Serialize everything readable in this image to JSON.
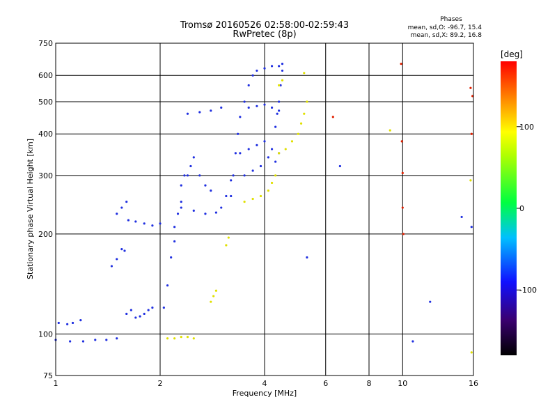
{
  "header": {
    "title_line1": "Tromsø 20160526 02:58:00-02:59:43",
    "title_line2": "RwPretec (8p)",
    "phases_title": "Phases",
    "phases_o": "mean, sd,O: -96.7, 15.4",
    "phases_x": "mean, sd,X:  89.2, 16.8"
  },
  "colorbar": {
    "unit": "[deg]",
    "ticks": [
      "100",
      "0",
      "-100"
    ],
    "tick_values": [
      100,
      0,
      -100
    ],
    "range": [
      -180,
      180
    ]
  },
  "chart_data": {
    "type": "scatter",
    "xlabel": "Frequency [MHz]",
    "ylabel": "Stationary phase Virtual Height [km]",
    "x_scale": "log",
    "y_scale": "log",
    "xlim": [
      1,
      16
    ],
    "ylim": [
      75,
      750
    ],
    "x_ticks": [
      1,
      2,
      4,
      6,
      8,
      10,
      16
    ],
    "x_tick_labels": [
      "1",
      "2",
      "4",
      "6",
      "8",
      "10",
      "16"
    ],
    "y_ticks": [
      75,
      100,
      200,
      300,
      400,
      500,
      600,
      750
    ],
    "y_tick_labels": [
      "75",
      "100",
      "200",
      "300",
      "400",
      "500",
      "600",
      "750"
    ],
    "grid": true,
    "series": [
      {
        "phase_color": "blue",
        "points": [
          [
            1.0,
            96
          ],
          [
            1.1,
            95
          ],
          [
            1.2,
            95
          ],
          [
            1.3,
            96
          ],
          [
            1.4,
            96
          ],
          [
            1.5,
            97
          ],
          [
            1.02,
            108
          ],
          [
            1.08,
            107
          ],
          [
            1.12,
            108
          ],
          [
            1.18,
            110
          ]
        ]
      },
      {
        "phase_color": "blue",
        "points": [
          [
            1.45,
            160
          ],
          [
            1.5,
            168
          ],
          [
            1.55,
            180
          ],
          [
            1.58,
            178
          ],
          [
            1.6,
            115
          ],
          [
            1.65,
            118
          ],
          [
            1.7,
            112
          ],
          [
            1.75,
            113
          ],
          [
            1.8,
            115
          ],
          [
            1.85,
            118
          ],
          [
            1.9,
            120
          ]
        ]
      },
      {
        "phase_color": "blue",
        "points": [
          [
            1.5,
            230
          ],
          [
            1.55,
            240
          ],
          [
            1.6,
            250
          ],
          [
            1.62,
            220
          ],
          [
            1.7,
            218
          ],
          [
            1.8,
            215
          ],
          [
            1.9,
            212
          ],
          [
            2.0,
            215
          ]
        ]
      },
      {
        "phase_color": "blue",
        "points": [
          [
            2.05,
            120
          ],
          [
            2.1,
            140
          ],
          [
            2.15,
            170
          ],
          [
            2.2,
            190
          ],
          [
            2.2,
            210
          ],
          [
            2.25,
            230
          ],
          [
            2.3,
            250
          ],
          [
            2.3,
            280
          ],
          [
            2.35,
            300
          ]
        ]
      },
      {
        "phase_color": "blue",
        "points": [
          [
            2.3,
            240
          ],
          [
            2.5,
            235
          ],
          [
            2.7,
            230
          ],
          [
            2.9,
            232
          ],
          [
            3.0,
            240
          ],
          [
            3.1,
            260
          ],
          [
            3.2,
            290
          ]
        ]
      },
      {
        "phase_color": "blue",
        "points": [
          [
            2.4,
            300
          ],
          [
            2.45,
            320
          ],
          [
            2.5,
            340
          ],
          [
            2.6,
            300
          ],
          [
            2.7,
            280
          ],
          [
            2.8,
            270
          ]
        ]
      },
      {
        "phase_color": "blue",
        "points": [
          [
            2.4,
            460
          ],
          [
            2.6,
            465
          ],
          [
            2.8,
            470
          ],
          [
            3.0,
            480
          ]
        ]
      },
      {
        "phase_color": "blue",
        "points": [
          [
            3.2,
            260
          ],
          [
            3.25,
            300
          ],
          [
            3.3,
            350
          ],
          [
            3.35,
            400
          ],
          [
            3.4,
            450
          ],
          [
            3.5,
            500
          ],
          [
            3.6,
            560
          ],
          [
            3.7,
            600
          ],
          [
            3.8,
            620
          ],
          [
            4.0,
            630
          ],
          [
            4.2,
            640
          ],
          [
            4.4,
            640
          ]
        ]
      },
      {
        "phase_color": "blue",
        "points": [
          [
            3.4,
            350
          ],
          [
            3.6,
            360
          ],
          [
            3.8,
            370
          ],
          [
            4.0,
            380
          ],
          [
            4.2,
            360
          ],
          [
            4.4,
            350
          ]
        ]
      },
      {
        "phase_color": "blue",
        "points": [
          [
            3.5,
            300
          ],
          [
            3.7,
            310
          ],
          [
            3.9,
            320
          ],
          [
            4.1,
            340
          ],
          [
            4.3,
            330
          ]
        ]
      },
      {
        "phase_color": "blue",
        "points": [
          [
            3.6,
            480
          ],
          [
            3.8,
            485
          ],
          [
            4.0,
            490
          ],
          [
            4.2,
            480
          ],
          [
            4.4,
            470
          ]
        ]
      },
      {
        "phase_color": "blue",
        "points": [
          [
            4.3,
            420
          ],
          [
            4.35,
            460
          ],
          [
            4.4,
            500
          ],
          [
            4.45,
            560
          ],
          [
            4.5,
            620
          ],
          [
            4.5,
            650
          ]
        ]
      },
      {
        "phase_color": "yellow",
        "points": [
          [
            3.5,
            250
          ],
          [
            3.7,
            255
          ],
          [
            3.9,
            260
          ],
          [
            4.1,
            270
          ],
          [
            4.2,
            285
          ],
          [
            4.3,
            300
          ]
        ]
      },
      {
        "phase_color": "yellow",
        "points": [
          [
            4.4,
            350
          ],
          [
            4.6,
            360
          ],
          [
            4.8,
            380
          ],
          [
            5.0,
            400
          ],
          [
            5.1,
            430
          ],
          [
            5.2,
            460
          ],
          [
            5.3,
            500
          ]
        ]
      },
      {
        "phase_color": "yellow",
        "points": [
          [
            2.1,
            97
          ],
          [
            2.2,
            97
          ],
          [
            2.3,
            98
          ],
          [
            2.4,
            98
          ],
          [
            2.5,
            97
          ]
        ]
      },
      {
        "phase_color": "yellow",
        "points": [
          [
            2.8,
            125
          ],
          [
            2.85,
            130
          ],
          [
            2.9,
            135
          ],
          [
            3.1,
            185
          ],
          [
            3.15,
            195
          ]
        ]
      },
      {
        "phase_color": "yellow",
        "points": [
          [
            4.4,
            560
          ],
          [
            4.5,
            580
          ],
          [
            5.2,
            610
          ]
        ]
      },
      {
        "phase_color": "red",
        "points": [
          [
            6.3,
            450
          ],
          [
            9.9,
            650
          ],
          [
            9.95,
            380
          ],
          [
            10.0,
            305
          ],
          [
            10.0,
            240
          ],
          [
            10.05,
            200
          ],
          [
            15.7,
            550
          ],
          [
            15.8,
            400
          ],
          [
            15.9,
            520
          ]
        ]
      },
      {
        "phase_color": "yellow",
        "points": [
          [
            9.2,
            410
          ],
          [
            15.7,
            290
          ],
          [
            15.8,
            88
          ]
        ]
      },
      {
        "phase_color": "blue",
        "points": [
          [
            6.6,
            320
          ],
          [
            10.7,
            95
          ],
          [
            12.0,
            125
          ],
          [
            14.8,
            225
          ],
          [
            15.8,
            210
          ],
          [
            5.3,
            170
          ]
        ]
      }
    ]
  }
}
